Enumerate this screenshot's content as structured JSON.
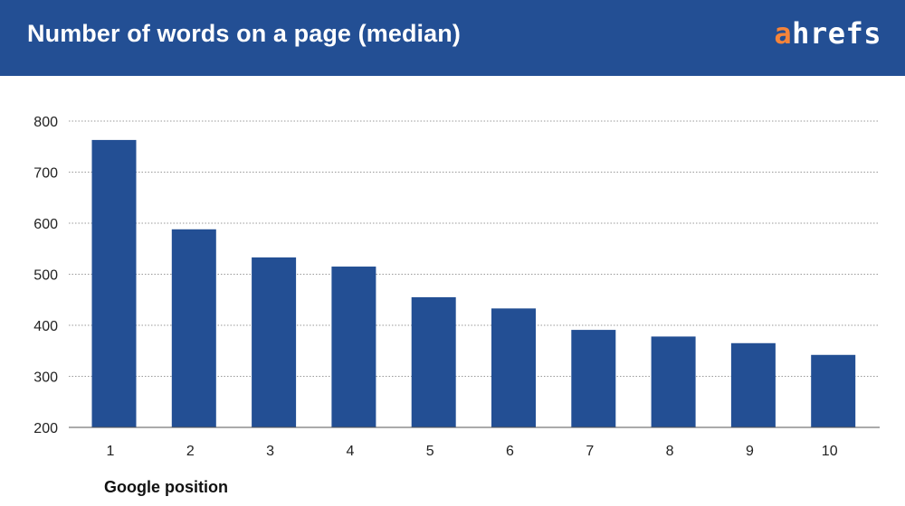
{
  "header": {
    "title": "Number of words on a page (median)",
    "logo_first": "a",
    "logo_rest": "hrefs",
    "background": "#234f94",
    "logo_accent": "#f5843a"
  },
  "chart_data": {
    "type": "bar",
    "categories": [
      "1",
      "2",
      "3",
      "4",
      "5",
      "6",
      "7",
      "8",
      "9",
      "10"
    ],
    "values": [
      763,
      588,
      533,
      515,
      455,
      433,
      391,
      378,
      365,
      342
    ],
    "xlabel": "Google position",
    "ylabel": "",
    "ylim": [
      200,
      800
    ],
    "yticks": [
      800,
      700,
      600,
      500,
      400,
      300,
      200
    ],
    "grid": true,
    "bar_color": "#234f94"
  }
}
